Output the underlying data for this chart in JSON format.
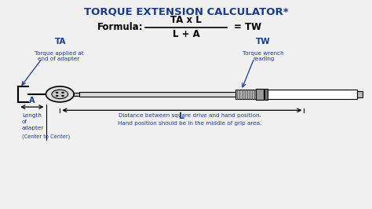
{
  "title": "TORQUE EXTENSION CALCULATOR*",
  "formula_label": "Formula:",
  "formula_numerator": "TA x L",
  "formula_denominator": "L + A",
  "formula_result": "= TW",
  "bg_color": "#f0f0f0",
  "blue_color": "#1a3a8a",
  "ta_label": "TA",
  "ta_desc1": "Torque applied at",
  "ta_desc2": "end of adapter",
  "tw_label": "TW",
  "tw_desc1": "Torque wrench",
  "tw_desc2": "reading",
  "a_label": "A",
  "a_desc1": "Length",
  "a_desc2": "of",
  "a_desc3": "adapter",
  "a_desc4": "(Center to Center)",
  "l_label": "L",
  "l_desc1": "Distance between square drive and hand position.",
  "l_desc2": "Hand position should be in the middle of grip area.",
  "gray_color": "#999999",
  "light_gray": "#cccccc"
}
